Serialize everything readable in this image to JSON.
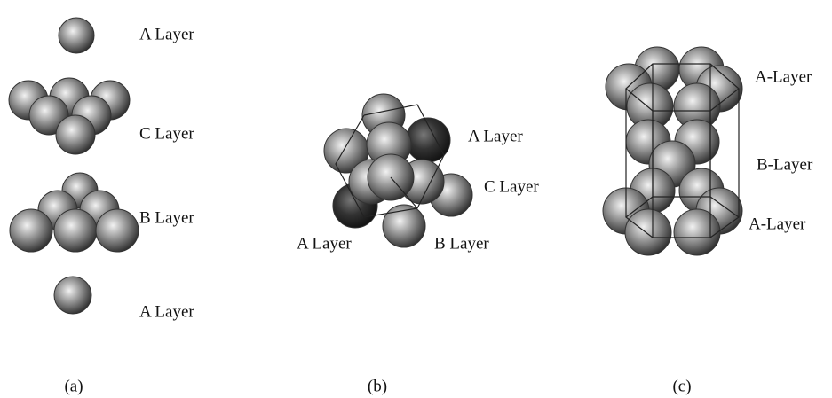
{
  "panels": [
    {
      "caption": "(a)",
      "labels": [
        "A Layer",
        "C Layer",
        "B Layer",
        "A Layer"
      ]
    },
    {
      "caption": "(b)",
      "labels": [
        "A Layer",
        "C Layer",
        "A Layer",
        "B Layer"
      ]
    },
    {
      "caption": "(c)",
      "labels": [
        "A-Layer",
        "B-Layer",
        "A-Layer"
      ]
    }
  ]
}
